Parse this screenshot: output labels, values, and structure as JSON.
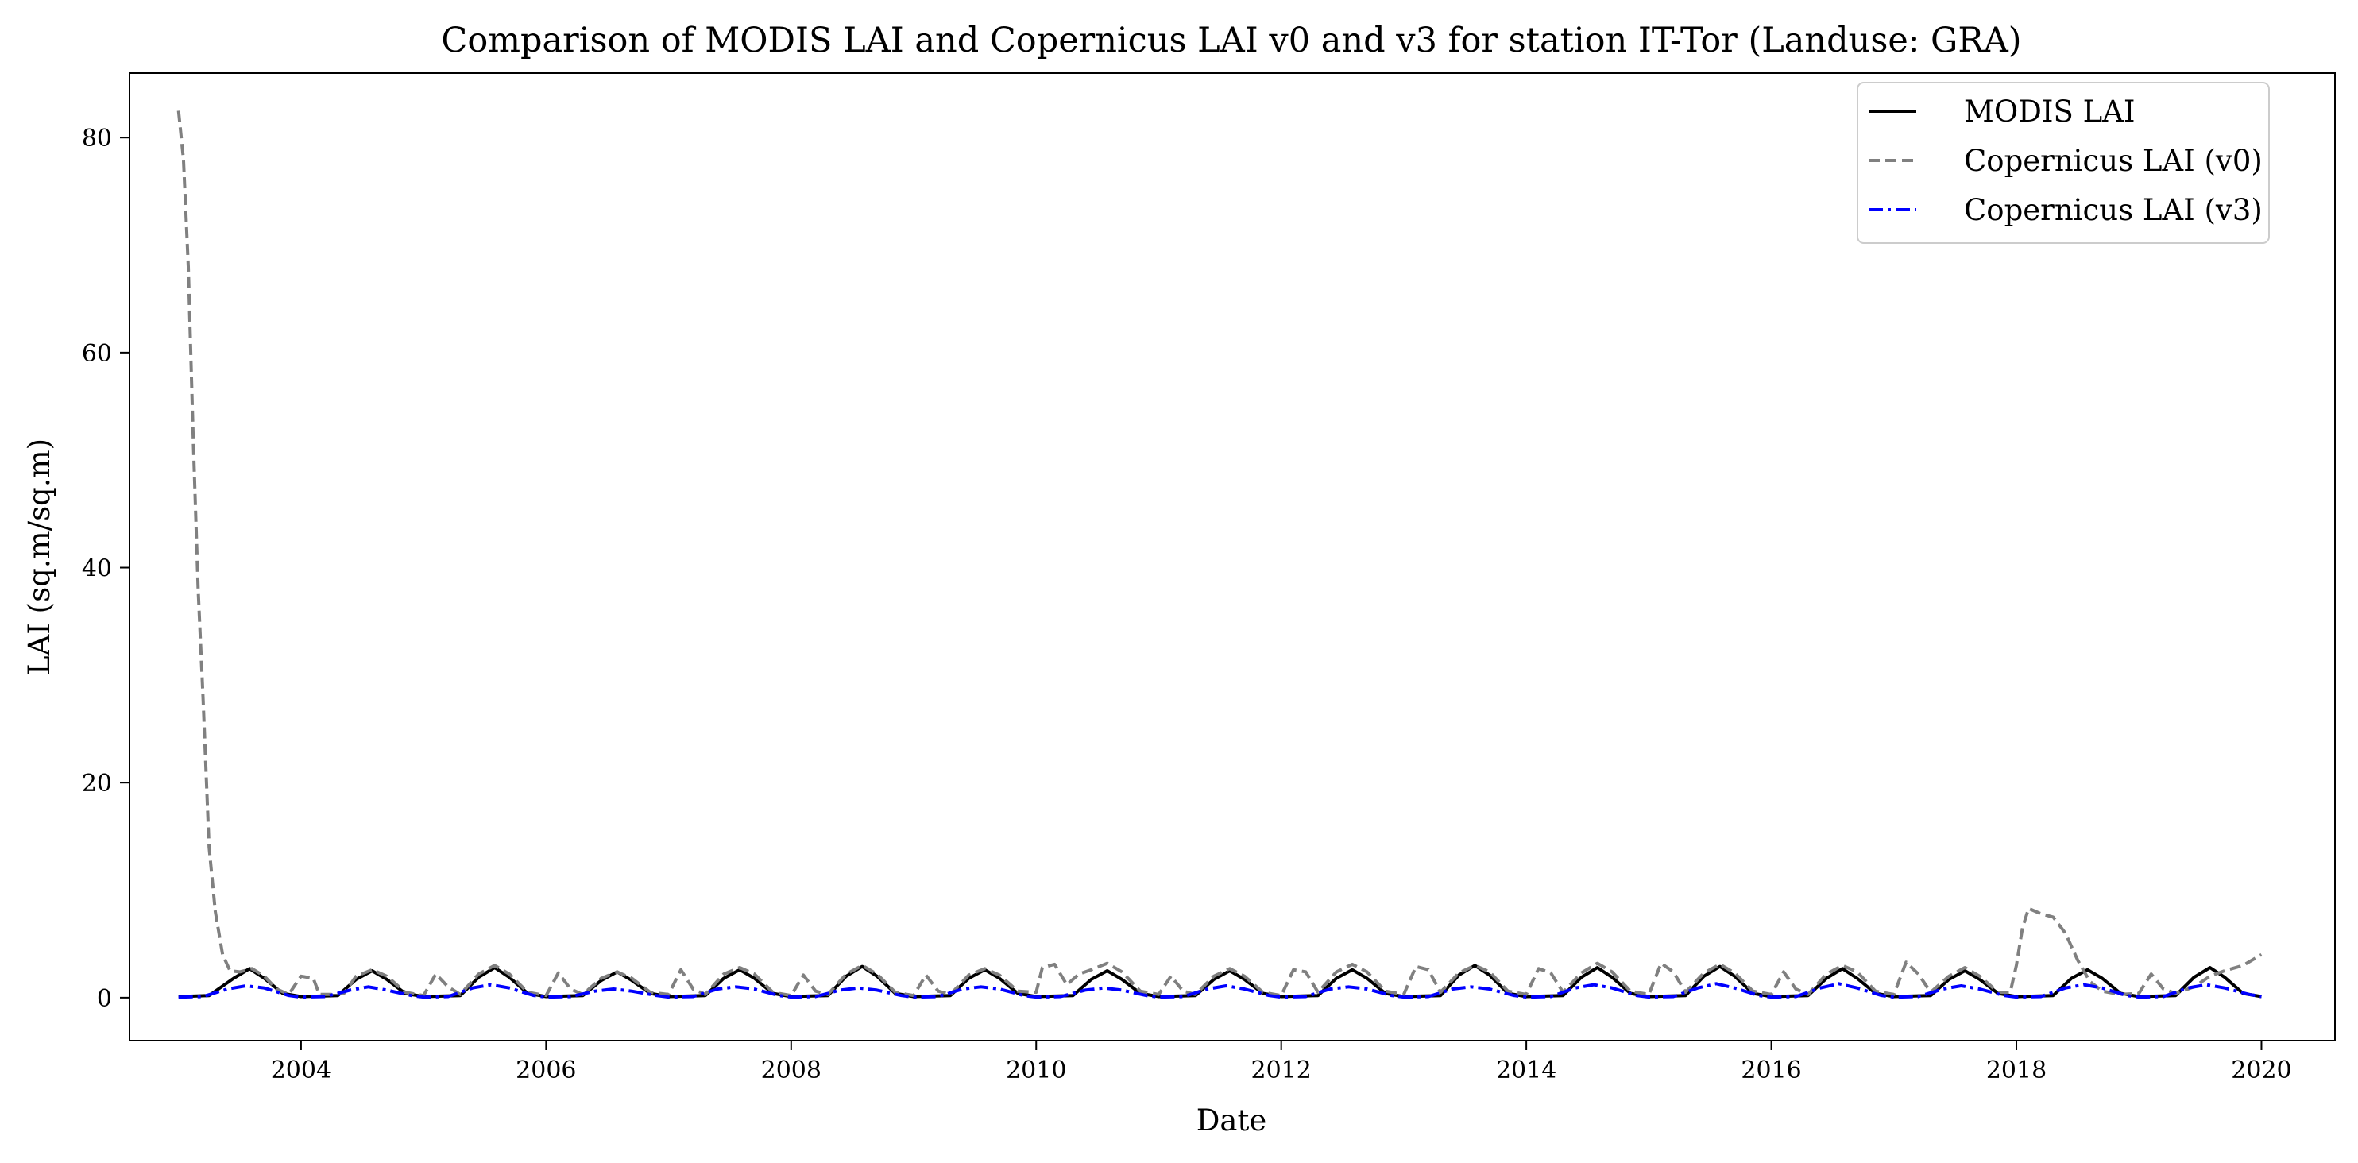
{
  "chart_data": {
    "type": "line",
    "title": "Comparison of MODIS LAI and Copernicus LAI v0 and v3 for station IT-Tor (Landuse: GRA)",
    "xlabel": "Date",
    "ylabel": "LAI (sq.m/sq.m)",
    "xlim": [
      2002.6,
      2020.6
    ],
    "ylim": [
      -4,
      86
    ],
    "xticks": [
      2004,
      2006,
      2008,
      2010,
      2012,
      2014,
      2016,
      2018,
      2020
    ],
    "xtick_labels": [
      "2004",
      "2006",
      "2008",
      "2010",
      "2012",
      "2014",
      "2016",
      "2018",
      "2020"
    ],
    "yticks": [
      0,
      20,
      40,
      60,
      80
    ],
    "ytick_labels": [
      "0",
      "20",
      "40",
      "60",
      "80"
    ],
    "grid": false,
    "legend_position": "top-right",
    "colors": {
      "modis": "#000000",
      "v0": "#808080",
      "v3": "#0000ff"
    },
    "series": [
      {
        "name": "MODIS LAI",
        "style": "solid",
        "color": "#000000",
        "x": [
          2003.0,
          2003.25,
          2003.45,
          2003.58,
          2003.7,
          2003.85,
          2004.0,
          2004.3,
          2004.45,
          2004.58,
          2004.7,
          2004.85,
          2005.0,
          2005.3,
          2005.45,
          2005.58,
          2005.7,
          2005.85,
          2006.0,
          2006.3,
          2006.45,
          2006.58,
          2006.7,
          2006.85,
          2007.0,
          2007.3,
          2007.45,
          2007.58,
          2007.7,
          2007.85,
          2008.0,
          2008.3,
          2008.45,
          2008.58,
          2008.7,
          2008.85,
          2009.0,
          2009.3,
          2009.45,
          2009.58,
          2009.7,
          2009.85,
          2010.0,
          2010.3,
          2010.45,
          2010.58,
          2010.7,
          2010.85,
          2011.0,
          2011.3,
          2011.45,
          2011.58,
          2011.7,
          2011.85,
          2012.0,
          2012.3,
          2012.45,
          2012.58,
          2012.7,
          2012.85,
          2013.0,
          2013.3,
          2013.45,
          2013.58,
          2013.7,
          2013.85,
          2014.0,
          2014.3,
          2014.45,
          2014.58,
          2014.7,
          2014.85,
          2015.0,
          2015.3,
          2015.45,
          2015.58,
          2015.7,
          2015.85,
          2016.0,
          2016.3,
          2016.45,
          2016.58,
          2016.7,
          2016.85,
          2017.0,
          2017.3,
          2017.45,
          2017.58,
          2017.7,
          2017.85,
          2018.0,
          2018.3,
          2018.45,
          2018.58,
          2018.7,
          2018.85,
          2019.0,
          2019.3,
          2019.45,
          2019.58,
          2019.7,
          2019.85,
          2020.0
        ],
        "y": [
          0.1,
          0.2,
          1.8,
          2.7,
          1.8,
          0.4,
          0.1,
          0.2,
          1.7,
          2.5,
          1.7,
          0.4,
          0.1,
          0.2,
          1.9,
          2.8,
          1.9,
          0.4,
          0.1,
          0.2,
          1.6,
          2.4,
          1.6,
          0.4,
          0.1,
          0.2,
          1.8,
          2.6,
          1.8,
          0.4,
          0.1,
          0.2,
          2.0,
          2.9,
          2.0,
          0.4,
          0.1,
          0.2,
          1.8,
          2.6,
          1.8,
          0.4,
          0.1,
          0.2,
          1.7,
          2.5,
          1.7,
          0.4,
          0.1,
          0.2,
          1.7,
          2.5,
          1.7,
          0.4,
          0.1,
          0.2,
          1.8,
          2.6,
          1.8,
          0.4,
          0.1,
          0.2,
          2.1,
          3.0,
          2.1,
          0.4,
          0.1,
          0.2,
          1.9,
          2.8,
          1.9,
          0.4,
          0.1,
          0.2,
          2.0,
          2.9,
          2.0,
          0.4,
          0.1,
          0.2,
          1.8,
          2.7,
          1.8,
          0.4,
          0.1,
          0.2,
          1.7,
          2.5,
          1.7,
          0.4,
          0.1,
          0.2,
          1.8,
          2.6,
          1.8,
          0.4,
          0.1,
          0.2,
          1.9,
          2.8,
          1.9,
          0.4,
          0.1
        ]
      },
      {
        "name": "Copernicus LAI (v0)",
        "style": "dashed",
        "color": "#808080",
        "x": [
          2003.0,
          2003.04,
          2003.08,
          2003.12,
          2003.16,
          2003.2,
          2003.25,
          2003.3,
          2003.36,
          2003.42,
          2003.5,
          2003.6,
          2003.7,
          2003.8,
          2003.9,
          2004.0,
          2004.1,
          2004.15,
          2004.25,
          2004.35,
          2004.45,
          2004.58,
          2004.7,
          2004.85,
          2005.0,
          2005.1,
          2005.2,
          2005.3,
          2005.45,
          2005.58,
          2005.7,
          2005.85,
          2006.0,
          2006.1,
          2006.2,
          2006.3,
          2006.45,
          2006.58,
          2006.7,
          2006.85,
          2007.0,
          2007.1,
          2007.2,
          2007.3,
          2007.45,
          2007.58,
          2007.7,
          2007.85,
          2008.0,
          2008.1,
          2008.2,
          2008.3,
          2008.45,
          2008.58,
          2008.7,
          2008.85,
          2009.0,
          2009.1,
          2009.2,
          2009.3,
          2009.45,
          2009.58,
          2009.7,
          2009.85,
          2010.0,
          2010.05,
          2010.15,
          2010.25,
          2010.35,
          2010.45,
          2010.58,
          2010.7,
          2010.85,
          2011.0,
          2011.1,
          2011.2,
          2011.3,
          2011.45,
          2011.58,
          2011.7,
          2011.85,
          2012.0,
          2012.1,
          2012.2,
          2012.3,
          2012.45,
          2012.58,
          2012.7,
          2012.85,
          2013.0,
          2013.1,
          2013.2,
          2013.3,
          2013.45,
          2013.58,
          2013.7,
          2013.85,
          2014.0,
          2014.1,
          2014.2,
          2014.3,
          2014.45,
          2014.58,
          2014.7,
          2014.85,
          2015.0,
          2015.1,
          2015.2,
          2015.3,
          2015.45,
          2015.58,
          2015.7,
          2015.85,
          2016.0,
          2016.1,
          2016.2,
          2016.3,
          2016.45,
          2016.58,
          2016.7,
          2016.85,
          2017.0,
          2017.1,
          2017.2,
          2017.3,
          2017.45,
          2017.58,
          2017.7,
          2017.85,
          2017.95,
          2018.0,
          2018.05,
          2018.1,
          2018.2,
          2018.3,
          2018.4,
          2018.5,
          2018.6,
          2018.7,
          2018.85,
          2019.0,
          2019.1,
          2019.2,
          2019.3,
          2019.45,
          2019.58,
          2019.7,
          2019.85,
          2020.0
        ],
        "y": [
          82.5,
          78.0,
          68.0,
          52.0,
          38.0,
          28.0,
          14.0,
          8.0,
          4.0,
          2.5,
          2.4,
          2.7,
          2.0,
          0.8,
          0.3,
          2.0,
          1.8,
          0.3,
          0.3,
          0.4,
          2.0,
          2.6,
          2.0,
          0.5,
          0.2,
          2.2,
          1.0,
          0.3,
          2.2,
          3.0,
          2.2,
          0.5,
          0.2,
          2.3,
          0.8,
          0.3,
          1.8,
          2.4,
          1.8,
          0.5,
          0.3,
          2.6,
          0.8,
          0.3,
          2.2,
          2.8,
          2.2,
          0.5,
          0.2,
          2.1,
          0.6,
          0.3,
          2.2,
          3.0,
          2.2,
          0.5,
          0.2,
          2.1,
          0.6,
          0.3,
          2.1,
          2.7,
          2.1,
          0.6,
          0.5,
          2.8,
          3.1,
          1.2,
          2.2,
          2.6,
          3.2,
          2.4,
          0.6,
          0.3,
          2.0,
          0.6,
          0.3,
          2.0,
          2.7,
          2.0,
          0.5,
          0.2,
          2.6,
          2.4,
          0.5,
          2.4,
          3.1,
          2.4,
          0.6,
          0.3,
          2.9,
          2.6,
          0.5,
          2.3,
          3.0,
          2.4,
          0.6,
          0.3,
          2.7,
          2.3,
          0.5,
          2.3,
          3.2,
          2.4,
          0.6,
          0.3,
          3.2,
          2.4,
          0.5,
          2.3,
          3.1,
          2.3,
          0.6,
          0.3,
          2.4,
          0.8,
          0.3,
          2.2,
          3.0,
          2.4,
          0.6,
          0.3,
          3.3,
          2.2,
          0.5,
          2.0,
          2.8,
          2.0,
          0.5,
          0.5,
          3.0,
          6.5,
          8.3,
          7.8,
          7.5,
          6.0,
          3.5,
          1.5,
          0.6,
          0.3,
          0.4,
          2.2,
          0.8,
          0.4,
          1.0,
          2.0,
          2.5,
          3.0,
          4.0
        ]
      },
      {
        "name": "Copernicus LAI (v3)",
        "style": "dashdot",
        "color": "#0000ff",
        "x": [
          2003.0,
          2003.2,
          2003.4,
          2003.55,
          2003.7,
          2003.9,
          2004.0,
          2004.2,
          2004.4,
          2004.55,
          2004.7,
          2004.9,
          2005.0,
          2005.2,
          2005.4,
          2005.55,
          2005.7,
          2005.9,
          2006.0,
          2006.2,
          2006.4,
          2006.55,
          2006.7,
          2006.9,
          2007.0,
          2007.2,
          2007.4,
          2007.55,
          2007.7,
          2007.9,
          2008.0,
          2008.2,
          2008.4,
          2008.55,
          2008.7,
          2008.9,
          2009.0,
          2009.2,
          2009.4,
          2009.55,
          2009.7,
          2009.9,
          2010.0,
          2010.2,
          2010.4,
          2010.55,
          2010.7,
          2010.9,
          2011.0,
          2011.2,
          2011.4,
          2011.55,
          2011.7,
          2011.9,
          2012.0,
          2012.2,
          2012.4,
          2012.55,
          2012.7,
          2012.9,
          2013.0,
          2013.2,
          2013.4,
          2013.55,
          2013.7,
          2013.9,
          2014.0,
          2014.2,
          2014.4,
          2014.55,
          2014.7,
          2014.9,
          2015.0,
          2015.2,
          2015.4,
          2015.55,
          2015.7,
          2015.9,
          2016.0,
          2016.2,
          2016.4,
          2016.55,
          2016.7,
          2016.9,
          2017.0,
          2017.2,
          2017.4,
          2017.55,
          2017.7,
          2017.9,
          2018.0,
          2018.2,
          2018.4,
          2018.55,
          2018.7,
          2018.9,
          2019.0,
          2019.2,
          2019.4,
          2019.55,
          2019.7,
          2019.9,
          2020.0
        ],
        "y": [
          0.05,
          0.1,
          0.8,
          1.1,
          0.9,
          0.2,
          0.05,
          0.1,
          0.7,
          1.0,
          0.7,
          0.2,
          0.05,
          0.1,
          0.9,
          1.2,
          0.9,
          0.2,
          0.05,
          0.1,
          0.6,
          0.8,
          0.6,
          0.2,
          0.05,
          0.1,
          0.8,
          1.0,
          0.8,
          0.2,
          0.05,
          0.1,
          0.7,
          0.9,
          0.7,
          0.2,
          0.05,
          0.1,
          0.8,
          1.0,
          0.8,
          0.2,
          0.05,
          0.1,
          0.7,
          0.9,
          0.7,
          0.2,
          0.05,
          0.1,
          0.8,
          1.1,
          0.8,
          0.2,
          0.05,
          0.1,
          0.8,
          1.0,
          0.8,
          0.2,
          0.05,
          0.1,
          0.8,
          1.0,
          0.8,
          0.2,
          0.05,
          0.1,
          0.9,
          1.2,
          0.9,
          0.2,
          0.05,
          0.1,
          0.9,
          1.3,
          0.9,
          0.2,
          0.05,
          0.1,
          0.9,
          1.3,
          0.9,
          0.2,
          0.05,
          0.1,
          0.8,
          1.1,
          0.8,
          0.2,
          0.05,
          0.1,
          0.9,
          1.2,
          0.9,
          0.2,
          0.05,
          0.1,
          0.9,
          1.2,
          0.9,
          0.3,
          0.1
        ]
      }
    ]
  }
}
